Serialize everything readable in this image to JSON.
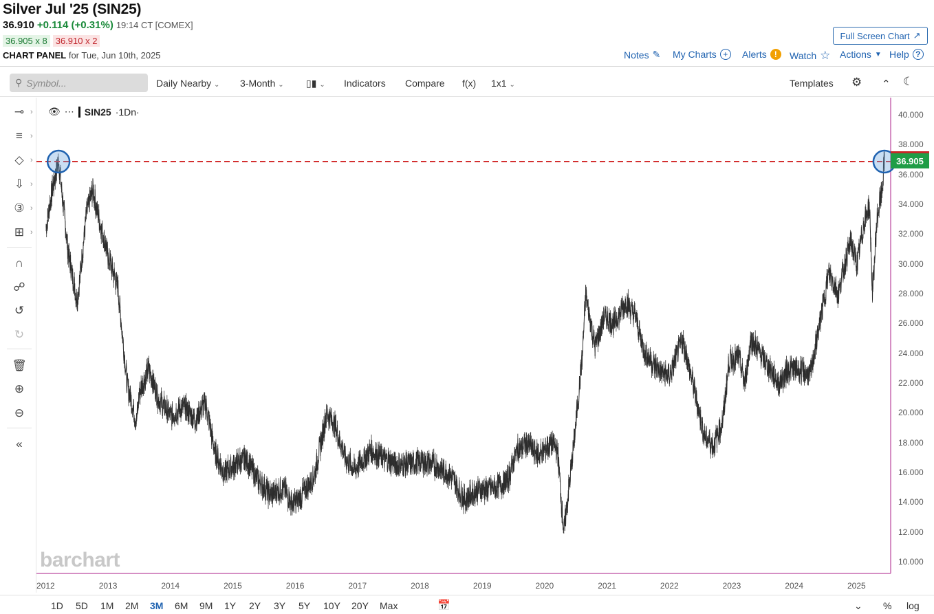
{
  "header": {
    "title": "Silver Jul '25 (SIN25)",
    "last": "36.910",
    "change": "+0.114 (+0.31%)",
    "time": "19:14 CT [COMEX]",
    "bid": "36.905 x 8",
    "ask": "36.910 x 2",
    "panel_label": "CHART PANEL",
    "panel_date": "for Tue, Jun 10th, 2025",
    "fullscreen_label": "Full Screen Chart"
  },
  "topnav": {
    "notes": "Notes",
    "my_charts": "My Charts",
    "alerts": "Alerts",
    "watch": "Watch",
    "actions": "Actions",
    "help": "Help"
  },
  "toolbar": {
    "symbol_placeholder": "Symbol...",
    "daily_nearby": "Daily Nearby",
    "period": "3-Month",
    "indicators": "Indicators",
    "compare": "Compare",
    "fx": "f(x)",
    "layout": "1x1",
    "templates": "Templates"
  },
  "legend": {
    "symbol": "SIN25",
    "interval": "·1Dn·"
  },
  "current_price_tag": "36.905",
  "watermark": "barchart",
  "period_buttons": [
    "1D",
    "5D",
    "1M",
    "2M",
    "3M",
    "6M",
    "9M",
    "1Y",
    "2Y",
    "3Y",
    "5Y",
    "10Y",
    "20Y",
    "Max"
  ],
  "selected_period": "3M",
  "bottom_right": {
    "percent": "%",
    "log": "log"
  },
  "colors": {
    "accent": "#1f62b0",
    "up": "#1a8a3a",
    "price_line": "#d32f2f",
    "price_tag": "#1f9d46"
  },
  "chart_data": {
    "type": "line",
    "title": "",
    "ylim": [
      10,
      40
    ],
    "y_ticks": [
      "40.000",
      "38.000",
      "36.000",
      "34.000",
      "32.000",
      "30.000",
      "28.000",
      "26.000",
      "24.000",
      "22.000",
      "20.000",
      "18.000",
      "16.000",
      "14.000",
      "12.000",
      "10.000"
    ],
    "x_ticks": [
      "2012",
      "2013",
      "2014",
      "2015",
      "2016",
      "2017",
      "2018",
      "2019",
      "2020",
      "2021",
      "2022",
      "2023",
      "2024",
      "2025"
    ],
    "price_line": 36.905,
    "series": [
      {
        "x": [
          2012.0,
          2012.1,
          2012.2,
          2012.35,
          2012.5,
          2012.65,
          2012.75,
          2012.85,
          2013.0,
          2013.15,
          2013.3,
          2013.45,
          2013.5,
          2013.65,
          2013.8,
          2014.0,
          2014.2,
          2014.4,
          2014.55,
          2014.7,
          2014.85,
          2015.0,
          2015.2,
          2015.4,
          2015.6,
          2015.8,
          2015.95,
          2016.05,
          2016.3,
          2016.5,
          2016.6,
          2016.8,
          2016.95,
          2017.2,
          2017.4,
          2017.5,
          2017.7,
          2018.0,
          2018.2,
          2018.5,
          2018.7,
          2018.9,
          2019.2,
          2019.4,
          2019.55,
          2019.7,
          2019.9,
          2020.1,
          2020.2,
          2020.3,
          2020.45,
          2020.6,
          2020.65,
          2020.8,
          2020.95,
          2021.1,
          2021.3,
          2021.45,
          2021.6,
          2021.8,
          2022.0,
          2022.2,
          2022.4,
          2022.55,
          2022.7,
          2022.85,
          2022.95,
          2023.1,
          2023.2,
          2023.3,
          2023.45,
          2023.6,
          2023.75,
          2023.9,
          2024.0,
          2024.15,
          2024.25,
          2024.4,
          2024.55,
          2024.7,
          2024.8,
          2024.9,
          2025.0,
          2025.1,
          2025.2,
          2025.25,
          2025.32,
          2025.4,
          2025.44
        ],
        "y": [
          32.5,
          35.0,
          37.0,
          31.0,
          27.5,
          33.5,
          35.0,
          33.0,
          30.5,
          28.5,
          22.0,
          19.5,
          21.5,
          23.0,
          21.0,
          19.8,
          20.5,
          19.5,
          20.8,
          17.5,
          16.0,
          16.5,
          17.0,
          15.5,
          14.5,
          15.0,
          13.9,
          14.2,
          15.8,
          20.0,
          19.5,
          17.0,
          16.2,
          17.5,
          17.0,
          16.8,
          16.5,
          16.8,
          16.6,
          15.8,
          14.2,
          14.8,
          15.0,
          15.5,
          17.5,
          18.0,
          17.2,
          18.0,
          17.5,
          12.0,
          17.5,
          24.0,
          28.0,
          24.5,
          26.5,
          26.0,
          27.5,
          26.5,
          24.0,
          23.0,
          22.5,
          25.0,
          21.5,
          18.5,
          17.8,
          19.5,
          23.5,
          23.8,
          22.0,
          25.0,
          24.0,
          23.0,
          22.0,
          23.0,
          23.0,
          22.8,
          22.5,
          26.0,
          29.5,
          28.0,
          30.0,
          31.5,
          30.0,
          32.5,
          34.0,
          28.0,
          33.0,
          35.0,
          36.9
        ]
      }
    ]
  }
}
